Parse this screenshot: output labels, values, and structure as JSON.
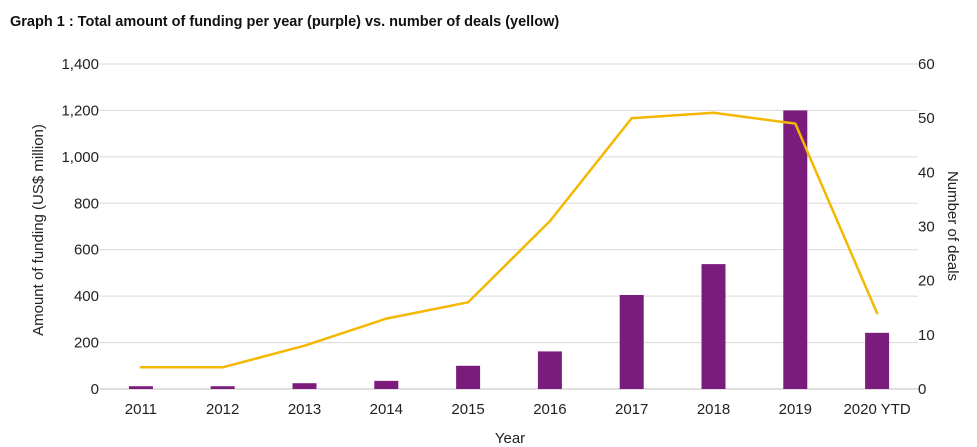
{
  "chart_data": {
    "type": "bar",
    "title": "Graph 1 : Total amount of funding per year (purple) vs. number of deals (yellow)",
    "xlabel": "Year",
    "ylabel": "Amount of funding (US$ million)",
    "y2label": "Number of deals",
    "categories": [
      "2011",
      "2012",
      "2013",
      "2014",
      "2015",
      "2016",
      "2017",
      "2018",
      "2019",
      "2020 YTD"
    ],
    "ylim": [
      0,
      1400
    ],
    "y2lim": [
      0,
      60
    ],
    "yticks": [
      "0",
      "200",
      "400",
      "600",
      "800",
      "1,000",
      "1,200",
      "1,400"
    ],
    "y2ticks": [
      "0",
      "10",
      "20",
      "30",
      "40",
      "50",
      "60"
    ],
    "grid": true,
    "series": [
      {
        "kind": "bar",
        "axis": "left",
        "color": "#7b1c7c",
        "values": [
          12,
          12,
          25,
          35,
          100,
          162,
          405,
          538,
          1200,
          242
        ]
      },
      {
        "kind": "line",
        "axis": "right",
        "color": "#f5b800",
        "values": [
          4,
          4,
          8,
          13,
          16,
          31,
          50,
          51,
          49,
          14
        ]
      }
    ]
  }
}
